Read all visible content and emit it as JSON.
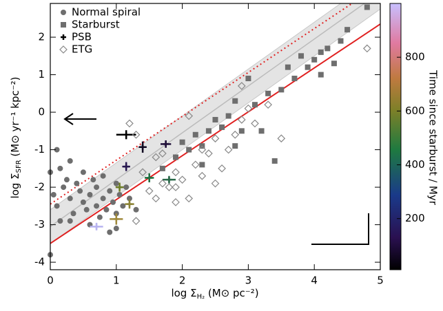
{
  "chart_data": {
    "type": "scatter",
    "x_label": [
      "log Σ",
      "H₂",
      " (M⊙ pc⁻²)"
    ],
    "y_label": [
      "log Σ",
      "SFR",
      " (M⊙ yr⁻¹ kpc⁻²)"
    ],
    "xlim": [
      0,
      5
    ],
    "xticks": [
      0,
      1,
      2,
      3,
      4,
      5
    ],
    "ylim": [
      -4.2,
      2.9
    ],
    "yticks": [
      -4,
      -3,
      -2,
      -1,
      0,
      1,
      2
    ],
    "legend": "upper left",
    "colorbar": {
      "label": "Time since starburst / Myr",
      "lim": [
        10,
        1000
      ],
      "ticks": [
        200,
        400,
        600,
        800
      ]
    },
    "lines": [
      {
        "color": "#bbbbbb",
        "style": "solid",
        "intercept": -3.05,
        "slope": 1.25,
        "band": 0.45
      },
      {
        "color": "#e02020",
        "style": "solid",
        "intercept": -3.5,
        "slope": 1.17
      },
      {
        "color": "#e02020",
        "style": "dotted",
        "intercept": -2.45,
        "slope": 1.17
      }
    ],
    "series": [
      {
        "name": "Normal spiral",
        "marker": "circle",
        "color": "#6e6e6e",
        "x": [
          0.1,
          0.0,
          0.05,
          0.1,
          0.15,
          0.2,
          0.25,
          0.3,
          0.3,
          0.35,
          0.4,
          0.45,
          0.5,
          0.5,
          0.55,
          0.6,
          0.6,
          0.65,
          0.7,
          0.7,
          0.75,
          0.8,
          0.8,
          0.85,
          0.9,
          0.9,
          0.95,
          1.0,
          1.0,
          1.05,
          1.1,
          1.15,
          1.2,
          1.3,
          1.0,
          0.0,
          0.3,
          0.15
        ],
        "values": [
          -1.0,
          -1.6,
          -2.2,
          -2.5,
          -2.9,
          -2.0,
          -1.8,
          -2.3,
          -1.3,
          -2.7,
          -1.9,
          -2.1,
          -2.4,
          -1.6,
          -2.6,
          -2.2,
          -3.0,
          -1.8,
          -2.5,
          -2.0,
          -2.8,
          -2.3,
          -1.7,
          -2.6,
          -2.1,
          -3.2,
          -2.4,
          -1.9,
          -2.7,
          -2.2,
          -2.5,
          -2.0,
          -2.3,
          -2.6,
          -3.1,
          -3.8,
          -2.9,
          -1.5
        ]
      },
      {
        "name": "Starburst",
        "marker": "square",
        "color": "#6e6e6e",
        "x": [
          1.7,
          1.9,
          2.0,
          2.1,
          2.2,
          2.3,
          2.3,
          2.4,
          2.5,
          2.6,
          2.7,
          2.8,
          2.8,
          2.9,
          3.0,
          3.1,
          3.3,
          3.4,
          3.5,
          3.6,
          3.7,
          3.8,
          3.9,
          4.0,
          4.1,
          4.2,
          4.3,
          4.4,
          4.5,
          4.1,
          4.8,
          3.2
        ],
        "values": [
          -1.5,
          -1.2,
          -0.8,
          -1.0,
          -0.6,
          -0.9,
          -1.4,
          -0.5,
          -0.2,
          -0.4,
          -0.1,
          -0.9,
          0.3,
          -0.5,
          0.9,
          0.2,
          0.5,
          -1.3,
          0.6,
          1.2,
          0.9,
          1.5,
          1.2,
          1.4,
          1.0,
          1.7,
          1.3,
          1.9,
          2.2,
          1.6,
          2.8,
          -0.5
        ]
      },
      {
        "name": "PSB",
        "marker": "cross",
        "color": "#000000",
        "x": [
          1.15,
          1.4,
          1.75,
          1.15,
          1.5,
          1.8,
          1.05,
          1.2,
          1.0,
          0.7
        ],
        "values": [
          -0.6,
          -0.93,
          -0.85,
          -1.45,
          -1.75,
          -1.8,
          -2.0,
          -2.45,
          -2.85,
          -3.05
        ],
        "xerr": [
          0.15,
          0.06,
          0.08,
          0.06,
          0.07,
          0.1,
          0.06,
          0.07,
          0.1,
          0.1
        ],
        "yerr": [
          0.12,
          0.15,
          0.1,
          0.12,
          0.12,
          0.1,
          0.12,
          0.12,
          0.15,
          0.1
        ],
        "colors": [
          "#000000",
          "#100820",
          "#20103a",
          "#281850",
          "#1e6e40",
          "#286848",
          "#6e7e28",
          "#8c8436",
          "#a08a3c",
          "#b8b4f0"
        ]
      },
      {
        "name": "ETG",
        "marker": "diamond",
        "color": "#888888",
        "x": [
          1.2,
          1.3,
          1.4,
          1.5,
          1.6,
          1.6,
          1.7,
          1.8,
          1.9,
          1.9,
          2.0,
          2.1,
          2.2,
          2.3,
          2.4,
          2.5,
          2.6,
          2.7,
          2.8,
          2.9,
          3.0,
          3.1,
          2.9,
          3.3,
          1.7,
          2.1,
          2.3,
          1.3,
          1.9,
          2.5,
          4.8,
          3.5
        ],
        "values": [
          -0.3,
          -0.6,
          -1.6,
          -2.1,
          -1.2,
          -2.3,
          -1.9,
          -2.0,
          -2.4,
          -1.6,
          -1.8,
          -2.3,
          -1.4,
          -1.7,
          -1.1,
          -0.7,
          -1.5,
          -1.0,
          -0.6,
          -0.2,
          0.1,
          -0.3,
          0.7,
          0.2,
          -1.1,
          -0.1,
          -1.0,
          -2.9,
          -2.0,
          -1.9,
          1.7,
          -0.7
        ]
      }
    ]
  }
}
